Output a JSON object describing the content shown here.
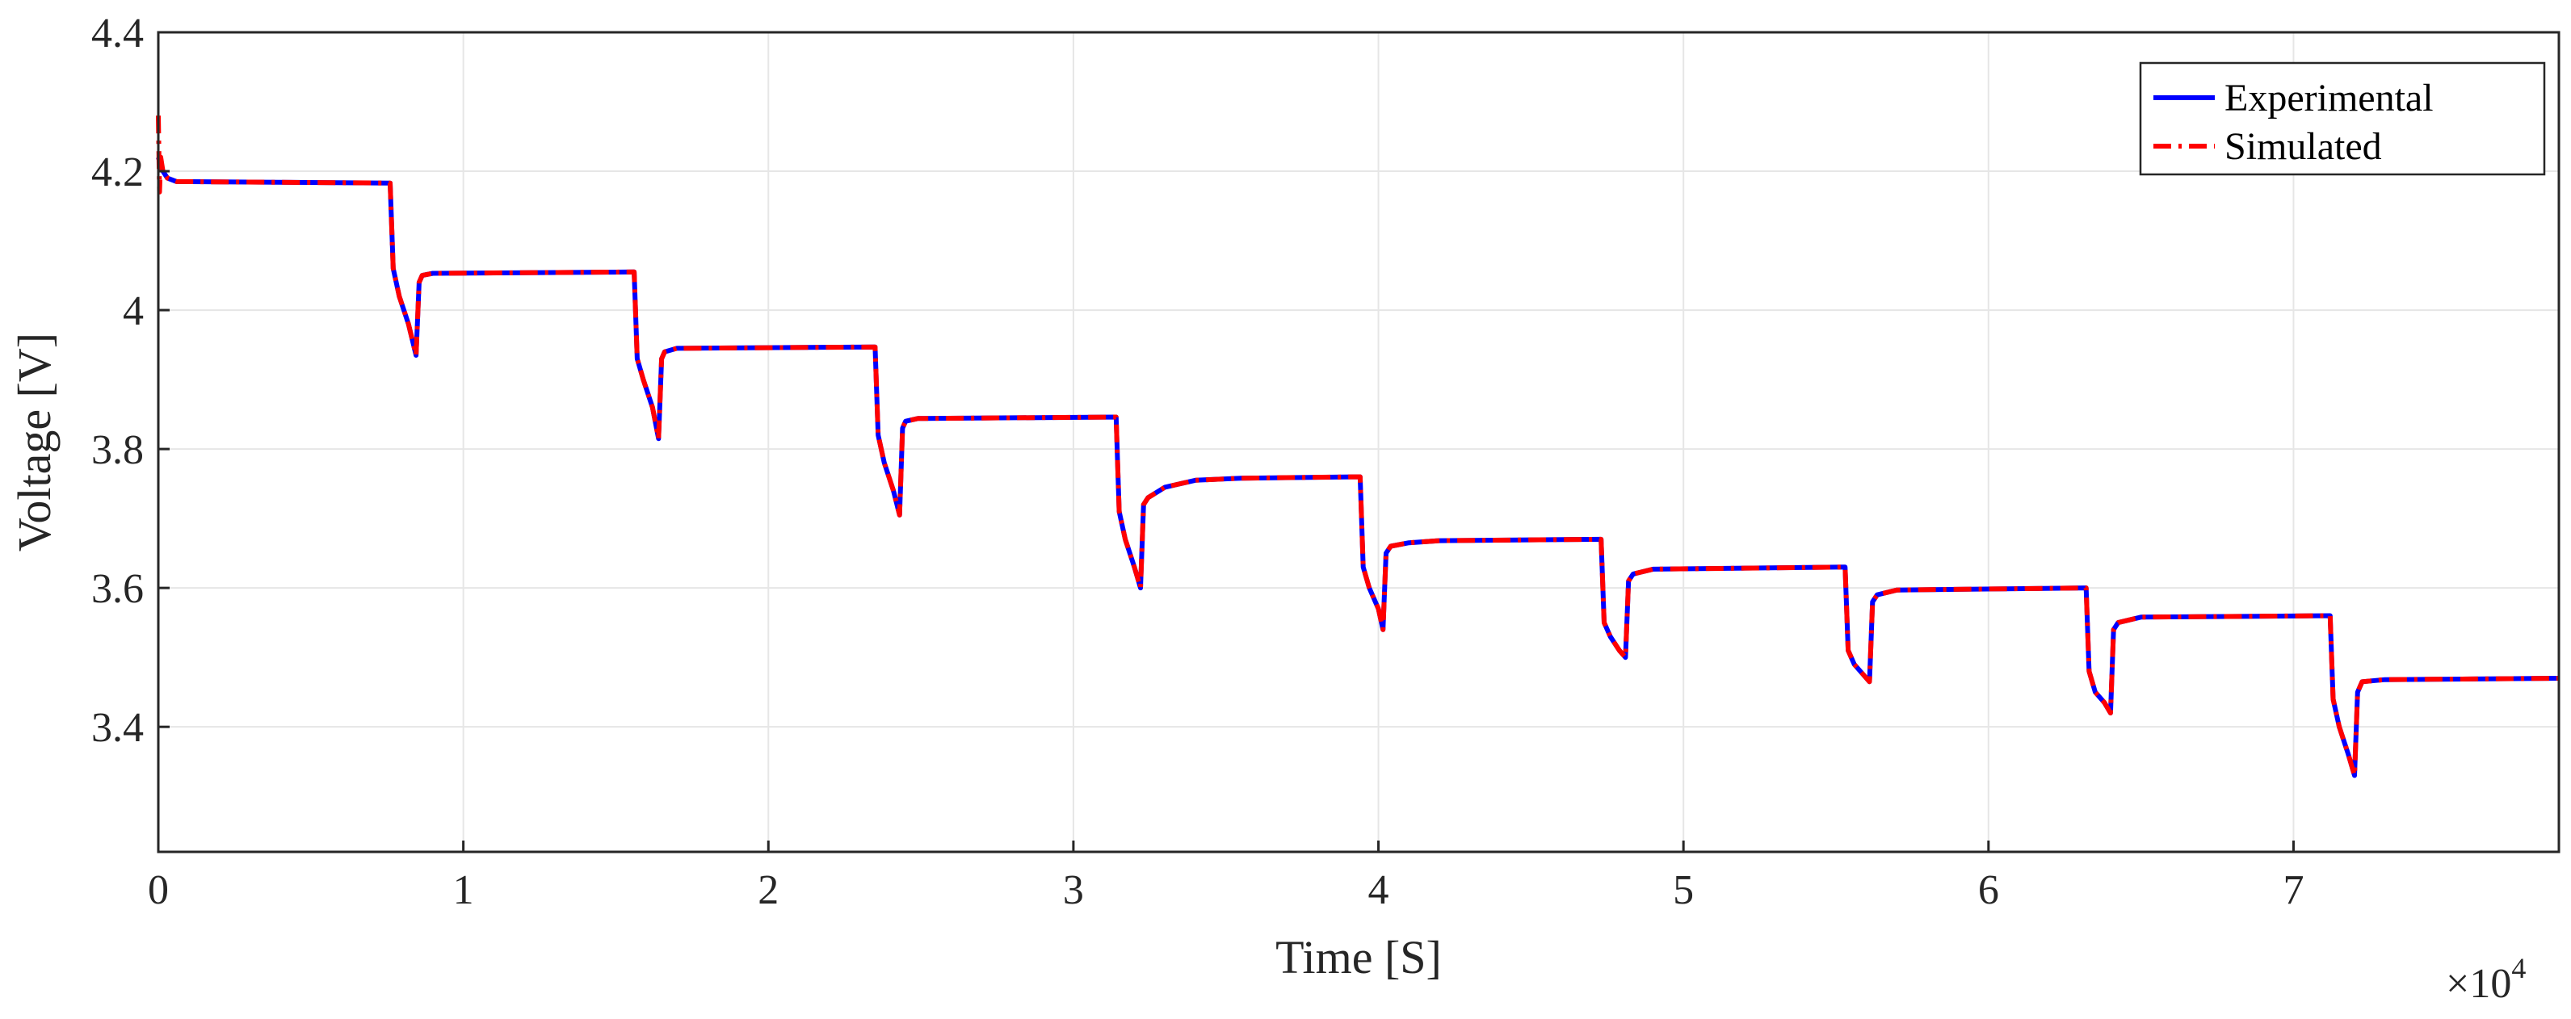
{
  "chart_data": {
    "type": "line",
    "xlabel": "Time [S]",
    "ylabel": "Voltage [V]",
    "x_multiplier_label": "×10",
    "x_multiplier_exponent": "4",
    "xlim": [
      0,
      78700
    ],
    "ylim": [
      3.22,
      4.4
    ],
    "xticks": [
      0,
      10000,
      20000,
      30000,
      40000,
      50000,
      60000,
      70000
    ],
    "xtick_labels": [
      "0",
      "1",
      "2",
      "3",
      "4",
      "5",
      "6",
      "7"
    ],
    "yticks": [
      3.4,
      3.6,
      3.8,
      4.0,
      4.2,
      4.4
    ],
    "ytick_labels": [
      "3.4",
      "3.6",
      "3.8",
      "4",
      "4.2",
      "4.4"
    ],
    "grid": true,
    "legend_position": "top-right",
    "series": [
      {
        "name": "Experimental",
        "color": "#0000ff",
        "style": "solid",
        "x": [
          0,
          150,
          300,
          600,
          7600,
          7700,
          7900,
          8200,
          8450,
          8550,
          8650,
          9000,
          15600,
          15700,
          15900,
          16200,
          16400,
          16500,
          16600,
          17000,
          23500,
          23600,
          23800,
          24100,
          24300,
          24400,
          24500,
          24900,
          31400,
          31500,
          31700,
          32000,
          32200,
          32300,
          32450,
          33000,
          34000,
          35500,
          39400,
          39500,
          39700,
          40000,
          40150,
          40250,
          40400,
          41000,
          42000,
          47300,
          47400,
          47600,
          47900,
          48100,
          48200,
          48350,
          49000,
          55300,
          55400,
          55600,
          55900,
          56100,
          56200,
          56350,
          57000,
          63200,
          63300,
          63500,
          63800,
          64000,
          64100,
          64250,
          65000,
          71200,
          71300,
          71500,
          71800,
          72000,
          72100,
          72250,
          73000,
          78700
        ],
        "y": [
          4.22,
          4.2,
          4.19,
          4.185,
          4.183,
          4.06,
          4.02,
          3.98,
          3.935,
          4.04,
          4.05,
          4.053,
          4.055,
          3.93,
          3.9,
          3.86,
          3.815,
          3.93,
          3.94,
          3.945,
          3.947,
          3.82,
          3.78,
          3.74,
          3.705,
          3.83,
          3.84,
          3.844,
          3.846,
          3.71,
          3.67,
          3.63,
          3.6,
          3.72,
          3.73,
          3.745,
          3.755,
          3.758,
          3.76,
          3.63,
          3.6,
          3.57,
          3.54,
          3.65,
          3.66,
          3.665,
          3.668,
          3.67,
          3.55,
          3.53,
          3.51,
          3.5,
          3.61,
          3.62,
          3.627,
          3.63,
          3.51,
          3.49,
          3.475,
          3.465,
          3.58,
          3.59,
          3.597,
          3.6,
          3.48,
          3.45,
          3.435,
          3.42,
          3.54,
          3.55,
          3.558,
          3.56,
          3.44,
          3.4,
          3.36,
          3.33,
          3.45,
          3.465,
          3.468,
          3.47
        ]
      },
      {
        "name": "Simulated",
        "color": "#ff0000",
        "style": "dashdot",
        "x": [
          0,
          40,
          80,
          150,
          300,
          600,
          7600,
          7700,
          7900,
          8200,
          8450,
          8550,
          8650,
          9000,
          15600,
          15700,
          15900,
          16200,
          16400,
          16500,
          16600,
          17000,
          23500,
          23600,
          23800,
          24100,
          24300,
          24400,
          24500,
          24900,
          31400,
          31500,
          31700,
          32000,
          32200,
          32300,
          32450,
          33000,
          34000,
          35500,
          39400,
          39500,
          39700,
          40000,
          40150,
          40250,
          40400,
          41000,
          42000,
          47300,
          47400,
          47600,
          47900,
          48100,
          48200,
          48350,
          49000,
          55300,
          55400,
          55600,
          55900,
          56100,
          56200,
          56350,
          57000,
          63200,
          63300,
          63500,
          63800,
          64000,
          64100,
          64250,
          65000,
          71200,
          71300,
          71500,
          71800,
          72000,
          72100,
          72250,
          73000,
          78700
        ],
        "y": [
          4.28,
          4.17,
          4.22,
          4.2,
          4.19,
          4.185,
          4.183,
          4.06,
          4.02,
          3.98,
          3.935,
          4.04,
          4.05,
          4.053,
          4.055,
          3.93,
          3.9,
          3.86,
          3.815,
          3.93,
          3.94,
          3.945,
          3.947,
          3.82,
          3.78,
          3.74,
          3.705,
          3.83,
          3.84,
          3.844,
          3.846,
          3.71,
          3.67,
          3.63,
          3.6,
          3.72,
          3.73,
          3.745,
          3.755,
          3.758,
          3.76,
          3.63,
          3.6,
          3.57,
          3.54,
          3.65,
          3.66,
          3.665,
          3.668,
          3.67,
          3.55,
          3.53,
          3.51,
          3.5,
          3.61,
          3.62,
          3.627,
          3.63,
          3.51,
          3.49,
          3.475,
          3.465,
          3.58,
          3.59,
          3.597,
          3.6,
          3.48,
          3.45,
          3.435,
          3.42,
          3.54,
          3.55,
          3.558,
          3.56,
          3.44,
          3.4,
          3.36,
          3.33,
          3.45,
          3.465,
          3.468,
          3.47
        ]
      }
    ]
  }
}
